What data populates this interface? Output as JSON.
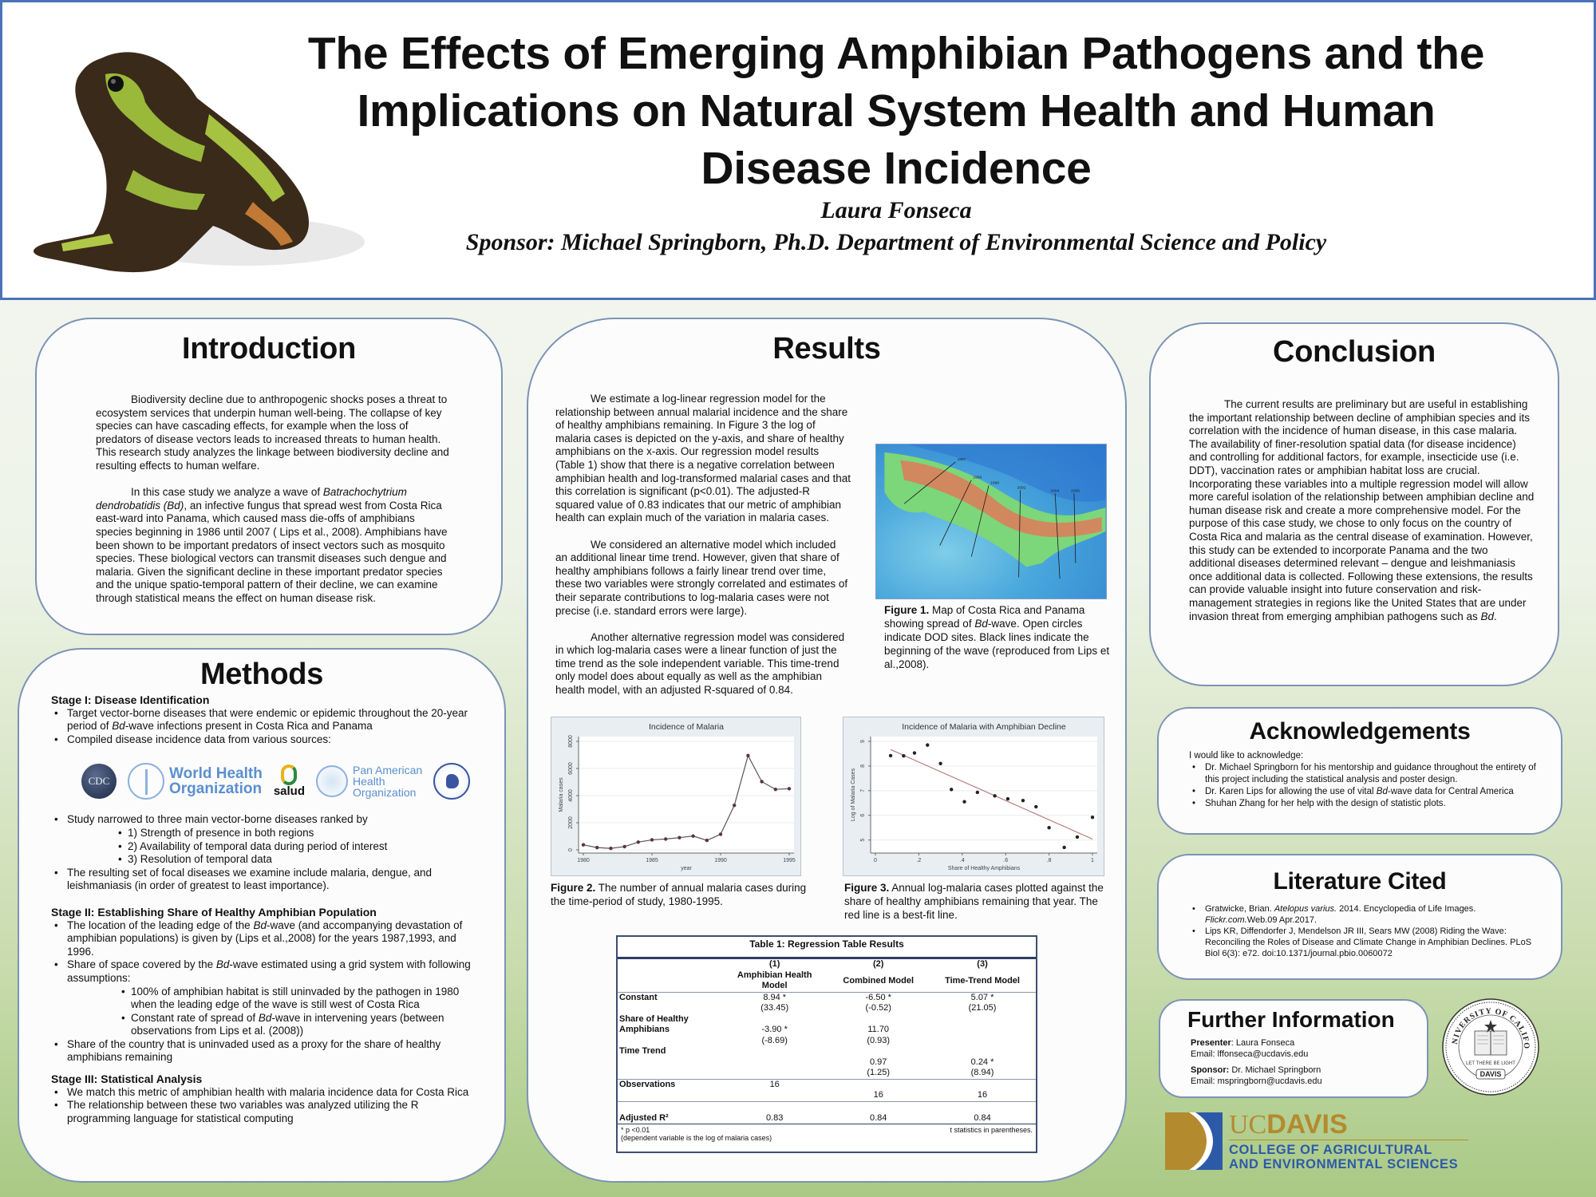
{
  "header": {
    "title_lines": [
      "The Effects of Emerging Amphibian Pathogens and the",
      "Implications on Natural System Health and Human",
      "Disease Incidence"
    ],
    "author": "Laura Fonseca",
    "sponsor": "Sponsor: Michael Springborn, Ph.D. Department of Environmental Science and Policy",
    "image": "frog-photo"
  },
  "introduction": {
    "heading": "Introduction",
    "paragraph1": "Biodiversity decline due to anthropogenic shocks poses a threat to ecosystem services that underpin human well-being. The collapse of key species can have cascading effects, for example when the loss of predators of disease vectors leads to increased threats to human health. This research study analyzes the linkage between biodiversity decline and resulting effects to human welfare.",
    "paragraph2_pre": "In this case study we analyze a wave of ",
    "paragraph2_italic": "Batrachochytrium dendrobatidis (Bd)",
    "paragraph2_post": ", an infective fungus that spread west from Costa Rica east-ward into Panama, which caused mass die-offs of amphibians species beginning in 1986 until 2007 ( Lips et al., 2008). Amphibians have been shown to be important predators of insect vectors such as mosquito species. These biological vectors can transmit diseases such dengue and malaria. Given the significant decline in these important predator species and the unique spatio-temporal pattern of their decline, we can examine through statistical means the effect on human disease risk."
  },
  "methods": {
    "heading": "Methods",
    "stage1": {
      "title": "Stage I: Disease Identification",
      "bullet1_pre": "Target vector-borne diseases that were endemic or epidemic throughout the 20-year period of ",
      "bullet1_italic": "Bd",
      "bullet1_post": "-wave infections present in Costa Rica and Panama",
      "bullet2": "Compiled disease incidence data from various sources:",
      "logos": {
        "cdc": "CDC",
        "who_line1": "World Health",
        "who_line2": "Organization",
        "salud": "salud",
        "paho_line1": "Pan American",
        "paho_line2": "Health",
        "paho_line3": "Organization"
      },
      "bullet3": "Study narrowed to three main vector-borne diseases ranked by",
      "sub": [
        "1) Strength of presence in both regions",
        "2) Availability of temporal data during period of interest",
        "3) Resolution of temporal data"
      ],
      "bullet4": "The resulting set of focal diseases we examine include malaria, dengue, and leishmaniasis (in order of greatest to least importance)."
    },
    "stage2": {
      "title": "Stage II: Establishing Share of Healthy Amphibian Population",
      "bullet1_pre": "The location of the leading edge of the ",
      "bullet1_italic": "Bd",
      "bullet1_post": "-wave (and accompanying devastation of amphibian populations) is given by (Lips et al.,2008) for the years 1987,1993, and 1996.",
      "bullet2_pre": "Share of space covered by the ",
      "bullet2_italic": "Bd",
      "bullet2_post": "-wave estimated using a grid system with following assumptions:",
      "sub1": "100% of amphibian habitat is still uninvaded by the pathogen in 1980 when the leading edge of the wave is still west of Costa Rica",
      "sub2_pre": "Constant rate of spread of ",
      "sub2_italic": "Bd",
      "sub2_post": "-wave in intervening years (between observations from Lips et al. (2008))",
      "bullet3": "Share of the country that is uninvaded used as a proxy for the share of healthy amphibians remaining"
    },
    "stage3": {
      "title": "Stage III: Statistical Analysis",
      "bullet1": "We match this metric of amphibian health with malaria incidence data for Costa Rica",
      "bullet2": "The relationship between these two variables was analyzed utilizing the R programming language for statistical computing"
    }
  },
  "results": {
    "heading": "Results",
    "p1": "We estimate a log-linear regression model for the relationship between annual malarial incidence and the share of healthy amphibians remaining. In Figure 3 the log of malaria cases is depicted on the y-axis, and share of healthy amphibians on the x-axis.  Our regression model results (Table 1) show that there is a negative correlation between amphibian health and log-transformed malarial cases and that this correlation is significant (p<0.01). The adjusted-R squared value of 0.83 indicates that  our metric of amphibian health can explain much of the variation in  malaria cases.",
    "p2": "We considered an alternative model which included an additional linear time trend.  However, given that share of healthy amphibians follows a fairly linear trend over time, these two variables were strongly correlated and estimates of their separate contributions to log-malaria cases were not precise (i.e. standard errors were large).",
    "p3": "Another alternative regression model was considered in which log-malaria cases were a linear function of just the time trend as the sole independent variable. This time-trend only model does about equally as well as the amphibian health model, with an adjusted R-squared of 0.84.",
    "fig1": {
      "label": "Figure 1.",
      "caption_pre": " Map of Costa Rica and Panama showing spread of ",
      "caption_italic": "Bd",
      "caption_post": "-wave. Open circles indicate DOD sites. Black lines indicate the beginning of the wave (reproduced from Lips et al.,2008).",
      "map_years": [
        "1987",
        "1993",
        "1996",
        "2002",
        "2004",
        "2006"
      ]
    },
    "fig2": {
      "label": "Figure 2.",
      "caption": "  The number of annual malaria cases during the time-period of study, 1980-1995."
    },
    "fig3": {
      "label": "Figure 3.",
      "caption": "  Annual log-malaria cases plotted against the share of healthy amphibians remaining that year. The red line is a best-fit line."
    },
    "table": {
      "title": "Table 1: Regression Table Results",
      "columns": [
        {
          "num": "(1)",
          "name_line1": "Amphibian Health",
          "name_line2": "Model"
        },
        {
          "num": "(2)",
          "name_line1": "Combined Model",
          "name_line2": ""
        },
        {
          "num": "(3)",
          "name_line1": "Time-Trend Model",
          "name_line2": ""
        }
      ],
      "rows": {
        "constant": {
          "label": "Constant",
          "values": [
            "8.94 *",
            "-6.50 *",
            "5.07 *"
          ],
          "tstats": [
            "(33.45)",
            "(-0.52)",
            "(21.05)"
          ]
        },
        "share": {
          "label_line1": "Share of Healthy",
          "label_line2": "Amphibians",
          "values": [
            "-3.90 *",
            "11.70",
            ""
          ],
          "tstats": [
            "(-8.69)",
            "(0.93)",
            ""
          ]
        },
        "trend": {
          "label": "Time Trend",
          "values": [
            "",
            "0.97",
            "0.24 *"
          ],
          "tstats": [
            "",
            "(1.25)",
            "(8.94)"
          ]
        },
        "obs": {
          "label": "Observations",
          "values": [
            "16",
            "16",
            "16"
          ]
        },
        "r2": {
          "label": "Adjusted R²",
          "values": [
            "0.83",
            "0.84",
            "0.84"
          ]
        }
      },
      "footnote_sig": "*  p <0.01",
      "footnote_dep": "(dependent variable is the log of malaria cases)",
      "footnote_t": "t statistics in parentheses."
    }
  },
  "chart_data": [
    {
      "type": "line",
      "title": "Incidence of Malaria",
      "xlabel": "year",
      "ylabel": "Malaria cases",
      "x": [
        1980,
        1981,
        1982,
        1983,
        1984,
        1985,
        1986,
        1987,
        1988,
        1989,
        1990,
        1991,
        1992,
        1993,
        1994,
        1995
      ],
      "values": [
        370,
        170,
        110,
        240,
        570,
        740,
        800,
        900,
        1020,
        700,
        1150,
        3280,
        6950,
        5030,
        4460,
        4510
      ],
      "xticks": [
        "1980",
        "1985",
        "1990",
        "1995"
      ],
      "yticks": [
        "0",
        "2000",
        "4000",
        "6000",
        "8000"
      ],
      "xlim": [
        1980,
        1995
      ],
      "ylim": [
        0,
        8000
      ],
      "grid": true
    },
    {
      "type": "scatter",
      "title": "Incidence of Malaria with Amphibian Decline",
      "xlabel": "Share of Healthy Amphibians",
      "ylabel": "Log of Malaria Cases",
      "x": [
        0.07,
        0.13,
        0.18,
        0.24,
        0.3,
        0.35,
        0.41,
        0.47,
        0.55,
        0.61,
        0.68,
        0.74,
        0.8,
        0.87,
        0.93,
        1.0
      ],
      "values": [
        8.42,
        8.41,
        8.53,
        8.85,
        8.1,
        7.05,
        6.55,
        6.93,
        6.79,
        6.67,
        6.6,
        6.35,
        5.5,
        4.7,
        5.12,
        5.92
      ],
      "fit_line": {
        "intercept": 8.94,
        "slope": -3.9
      },
      "xticks": [
        "0",
        ".2",
        ".4",
        ".6",
        ".8",
        "1"
      ],
      "yticks": [
        "5",
        "6",
        "7",
        "8",
        "9"
      ],
      "xlim": [
        0,
        1
      ],
      "ylim": [
        4.6,
        9.0
      ],
      "grid": true
    }
  ],
  "conclusion": {
    "heading": "Conclusion",
    "text_pre": "The current results are preliminary but are useful in establishing the important relationship between decline of amphibian species and its correlation with the incidence of human disease, in this case malaria. The availability of finer-resolution spatial data (for disease incidence) and controlling for additional factors, for example, insecticide use (i.e. DDT), vaccination rates or amphibian habitat loss are crucial. Incorporating these variables into a multiple regression model will allow more careful isolation of the relationship between amphibian decline and human disease risk and create a more comprehensive model. For the purpose of this case study, we chose to only focus on the country of Costa Rica and malaria as the central disease of examination. However, this study can be extended to incorporate Panama and the two additional diseases determined relevant – dengue and leishmaniasis once additional data is collected. Following these extensions, the results can provide valuable insight into future conservation and risk-management strategies in regions like the United States that are under invasion threat from emerging amphibian pathogens such as ",
    "text_italic": "Bd",
    "text_post": "."
  },
  "acknowledgements": {
    "heading": "Acknowledgements",
    "intro": "I would like to acknowledge:",
    "item1": "Dr. Michael Springborn for his mentorship and guidance throughout the entirety of this project including the statistical analysis and poster design.",
    "item2_pre": "Dr. Karen Lips for allowing the use of vital ",
    "item2_italic": "Bd",
    "item2_post": "-wave data for Central America",
    "item3": "Shuhan Zhang for her help with the design of statistic plots."
  },
  "literature": {
    "heading": "Literature Cited",
    "ref1_pre": "Gratwicke, Brian. ",
    "ref1_italic": "Atelopus varius.",
    "ref1_mid": " 2014. Encyclopedia of Life Images. ",
    "ref1_italic2": "Flickr.com.",
    "ref1_post": "Web.09 Apr.2017.",
    "ref2": "Lips KR, Diffendorfer J, Mendelson JR III, Sears MW (2008) Riding the Wave: Reconciling the Roles of Disease and Climate Change in Amphibian Declines. PLoS Biol 6(3): e72. doi:10.1371/journal.pbio.0060072"
  },
  "further_info": {
    "heading": "Further Information",
    "presenter_label": "Presenter",
    "presenter_name": ": Laura Fonseca",
    "presenter_email": "Email: lffonseca@ucdavis.edu",
    "sponsor_label": "Sponsor:",
    "sponsor_name": " Dr. Michael Springborn",
    "sponsor_email": "Email: mspringborn@ucdavis.edu"
  },
  "logos": {
    "seal_top": "THE UNIVERSITY OF CALIFORNIA",
    "seal_motto": "LET THERE BE LIGHT",
    "seal_bottom": "DAVIS",
    "ucd_uc": "UC",
    "ucd_davis": "DAVIS",
    "college_line1": "COLLEGE OF AGRICULTURAL",
    "college_line2": "AND ENVIRONMENTAL SCIENCES"
  },
  "colors": {
    "header_border": "#4a72b8",
    "panel_border": "#7d93b6",
    "ucd_gold": "#b48a2f",
    "ucd_blue": "#2d5aa8",
    "fit_line": "#b7827f"
  }
}
